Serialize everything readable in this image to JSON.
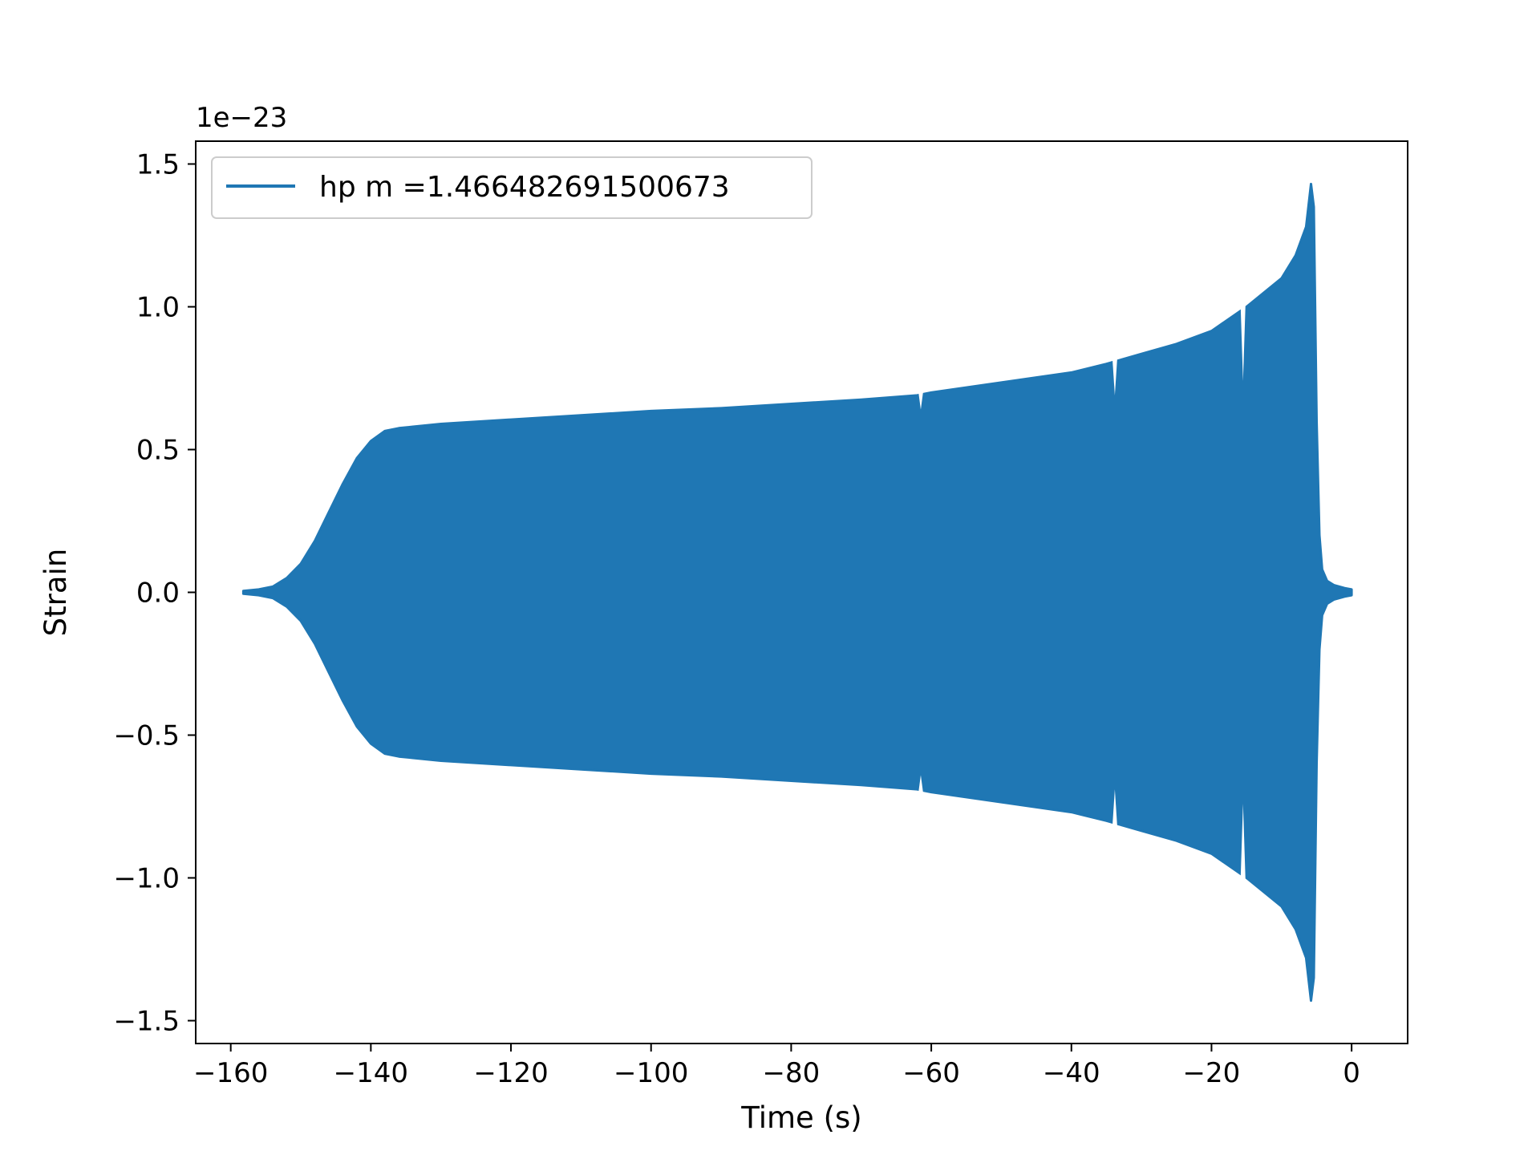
{
  "chart_data": {
    "type": "line",
    "title": "",
    "xlabel": "Time (s)",
    "ylabel": "Strain",
    "offset_text": "1e−23",
    "xlim": [
      -165,
      8
    ],
    "ylim": [
      -1.58,
      1.58
    ],
    "x_ticks": [
      -160,
      -140,
      -120,
      -100,
      -80,
      -60,
      -40,
      -20,
      0
    ],
    "x_tick_labels": [
      "−160",
      "−140",
      "−120",
      "−100",
      "−80",
      "−60",
      "−40",
      "−20",
      "0"
    ],
    "y_ticks": [
      1.5,
      1.0,
      0.5,
      0.0,
      -0.5,
      -1.0,
      -1.5
    ],
    "y_tick_labels": [
      "1.5",
      "1.0",
      "0.5",
      "0.0",
      "−0.5",
      "−1.0",
      "−1.5"
    ],
    "grid": false,
    "legend_position": "upper-left",
    "series": [
      {
        "name": "hp m =1.466482691500673",
        "color": "#1f77b4",
        "envelope": {
          "x": [
            -158.2,
            -156,
            -154,
            -152,
            -150,
            -148,
            -146,
            -144,
            -142,
            -140,
            -138,
            -136,
            -134,
            -130,
            -120,
            -110,
            -100,
            -90,
            -80,
            -70,
            -62,
            -60,
            -50,
            -40,
            -35,
            -30,
            -25,
            -20,
            -15,
            -10,
            -8,
            -6.5,
            -5.8,
            -5.4,
            -5.0,
            -4.6,
            -4.2,
            -3.5,
            -2.5,
            -1,
            0
          ],
          "upper": [
            0.005,
            0.01,
            0.02,
            0.05,
            0.1,
            0.18,
            0.28,
            0.38,
            0.47,
            0.53,
            0.565,
            0.575,
            0.58,
            0.59,
            0.605,
            0.62,
            0.635,
            0.645,
            0.66,
            0.675,
            0.69,
            0.7,
            0.735,
            0.77,
            0.8,
            0.835,
            0.87,
            0.915,
            1.0,
            1.1,
            1.18,
            1.28,
            1.43,
            1.35,
            0.6,
            0.2,
            0.08,
            0.04,
            0.025,
            0.015,
            0.01
          ],
          "lower": [
            -0.005,
            -0.01,
            -0.02,
            -0.05,
            -0.1,
            -0.18,
            -0.28,
            -0.38,
            -0.47,
            -0.53,
            -0.565,
            -0.575,
            -0.58,
            -0.59,
            -0.605,
            -0.62,
            -0.635,
            -0.645,
            -0.66,
            -0.675,
            -0.69,
            -0.7,
            -0.735,
            -0.77,
            -0.8,
            -0.835,
            -0.87,
            -0.915,
            -1.0,
            -1.1,
            -1.18,
            -1.28,
            -1.43,
            -1.35,
            -0.6,
            -0.2,
            -0.08,
            -0.04,
            -0.025,
            -0.015,
            -0.01
          ]
        },
        "glitches": [
          {
            "x": -61.5,
            "upper": 0.64,
            "lower": -0.64
          },
          {
            "x": -33.8,
            "upper": 0.69,
            "lower": -0.69
          },
          {
            "x": -15.5,
            "upper": 0.74,
            "lower": -0.74
          }
        ]
      }
    ]
  }
}
